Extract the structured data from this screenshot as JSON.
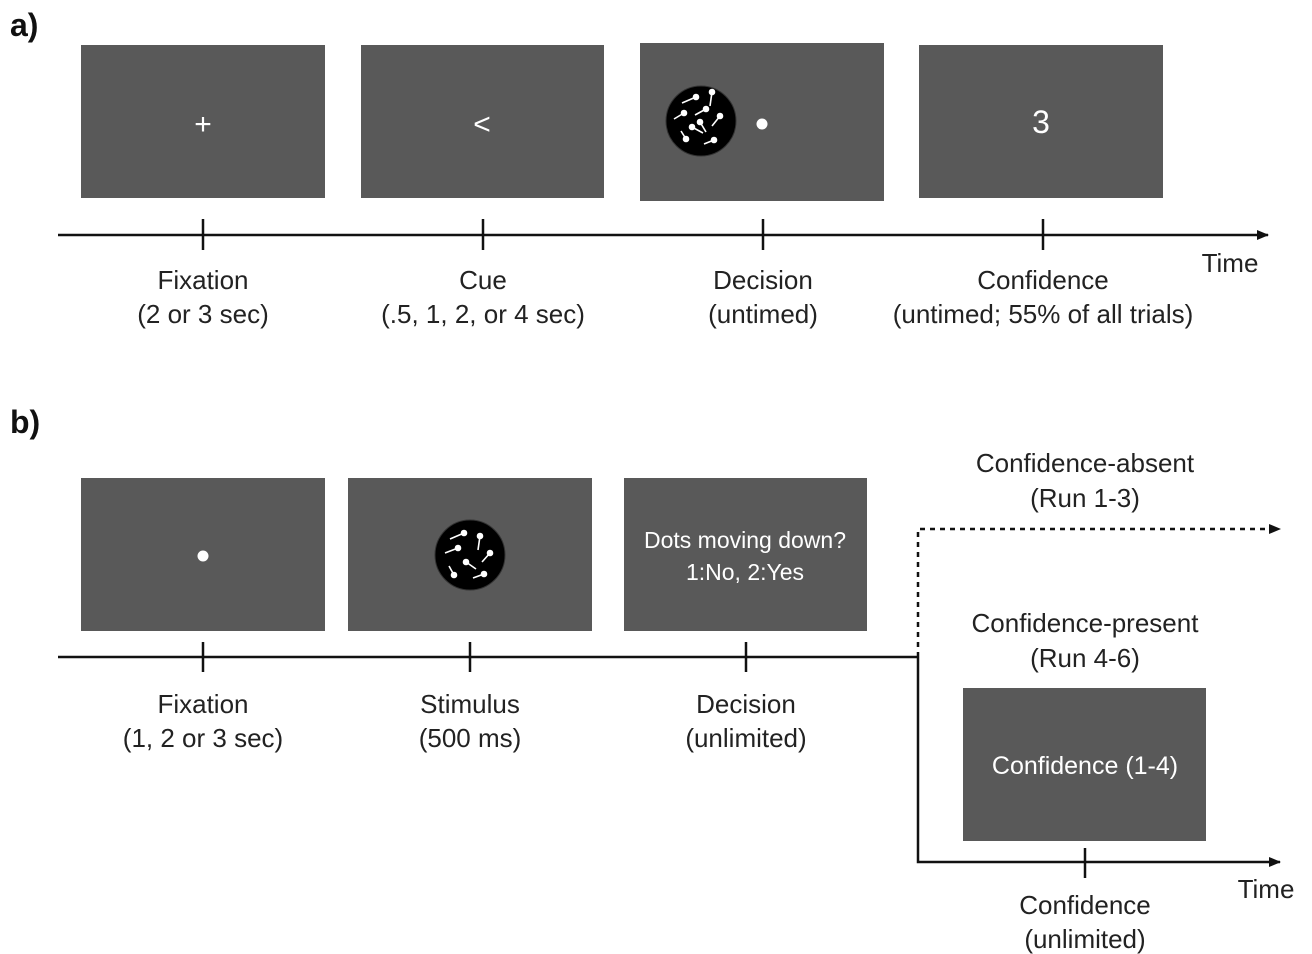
{
  "panel_a": {
    "label": "a)",
    "screens": [
      {
        "symbol": "+"
      },
      {
        "symbol": "<"
      },
      {
        "symbol": ""
      },
      {
        "symbol": "3"
      }
    ],
    "events": [
      {
        "title": "Fixation",
        "duration": "(2 or 3 sec)"
      },
      {
        "title": "Cue",
        "duration": "(.5, 1, 2, or 4 sec)"
      },
      {
        "title": "Decision",
        "duration": "(untimed)"
      },
      {
        "title": "Confidence",
        "duration": "(untimed; 55% of all trials)"
      }
    ],
    "axis_label": "Time"
  },
  "panel_b": {
    "label": "b)",
    "screens": {
      "decision_line1": "Dots moving down?",
      "decision_line2": "1:No, 2:Yes",
      "confidence_text": "Confidence (1-4)"
    },
    "events": [
      {
        "title": "Fixation",
        "duration": "(1, 2 or 3 sec)"
      },
      {
        "title": "Stimulus",
        "duration": "(500 ms)"
      },
      {
        "title": "Decision",
        "duration": "(unlimited)"
      }
    ],
    "branch_absent": {
      "title": "Confidence-absent",
      "runs": "(Run 1-3)"
    },
    "branch_present": {
      "title": "Confidence-present",
      "runs": "(Run 4-6)"
    },
    "confidence_event": {
      "title": "Confidence",
      "duration": "(unlimited)"
    },
    "axis_label": "Time"
  }
}
